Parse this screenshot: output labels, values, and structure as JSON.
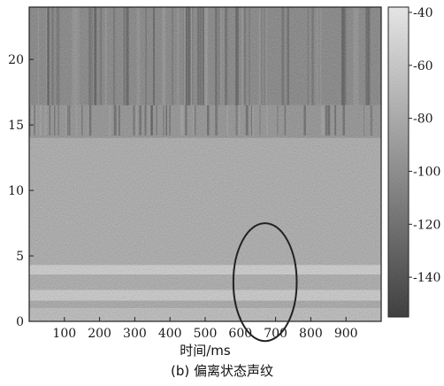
{
  "chart_data": {
    "type": "heatmap",
    "title": "",
    "xlabel": "时间/ms",
    "ylabel": "",
    "xlim": [
      0,
      1000
    ],
    "ylim": [
      0,
      24
    ],
    "x_ticks": [
      100,
      200,
      300,
      400,
      500,
      600,
      700,
      800,
      900
    ],
    "y_ticks": [
      0,
      5,
      10,
      15,
      20
    ],
    "colorbar": {
      "range": [
        -155,
        -38
      ],
      "ticks": [
        -40,
        -60,
        -80,
        -100,
        -120,
        -140
      ],
      "colormap": "grayscale (dark = low, light = high)"
    },
    "bands": [
      {
        "y_range": [
          0,
          1
        ],
        "level": -70
      },
      {
        "y_range": [
          1,
          1.6
        ],
        "level": -85
      },
      {
        "y_range": [
          1.6,
          2.4
        ],
        "level": -60
      },
      {
        "y_range": [
          2.4,
          3.6
        ],
        "level": -82
      },
      {
        "y_range": [
          3.6,
          4.3
        ],
        "level": -58
      },
      {
        "y_range": [
          4.3,
          14
        ],
        "level": -82
      },
      {
        "y_range": [
          14,
          16.5
        ],
        "level": -100
      },
      {
        "y_range": [
          16.5,
          24
        ],
        "level": -110
      }
    ],
    "annotation": {
      "shape": "ellipse",
      "center": [
        670,
        3
      ],
      "radius": [
        90,
        4.5
      ]
    }
  },
  "caption": "(b) 偏离状态声纹"
}
